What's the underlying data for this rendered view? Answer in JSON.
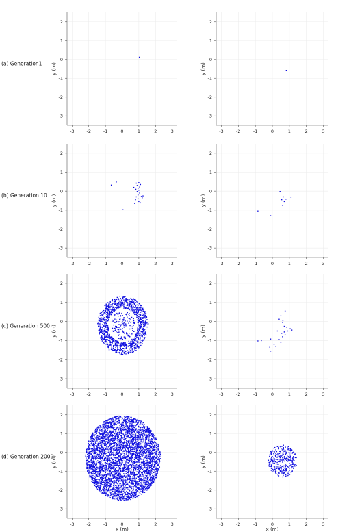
{
  "chart_data": {
    "type": "scatter",
    "point_color": "#1010e0",
    "xlim": [
      -3.3,
      3.3
    ],
    "ylim": [
      -3.5,
      2.5
    ],
    "xticks": [
      -3,
      -2,
      -1,
      0,
      1,
      2,
      3
    ],
    "yticks": [
      -3,
      -2,
      -1,
      0,
      1,
      2
    ],
    "xlabel": "x (m)",
    "ylabel": "y (m)",
    "grid": true,
    "rows": [
      {
        "label": "(a) Generation1",
        "panels": [
          {
            "points": [
              [
                1.03,
                0.12
              ]
            ]
          },
          {
            "points": [
              [
                0.82,
                -0.58
              ]
            ]
          }
        ]
      },
      {
        "label": "(b) Generation 10",
        "panels": [
          {
            "points": [
              [
                -0.65,
                0.32
              ],
              [
                -0.35,
                0.48
              ],
              [
                0.05,
                -0.98
              ],
              [
                0.85,
                0.42
              ],
              [
                1.0,
                0.45
              ],
              [
                0.9,
                0.3
              ],
              [
                1.05,
                0.22
              ],
              [
                0.95,
                0.15
              ],
              [
                0.82,
                0.1
              ],
              [
                1.0,
                0.05
              ],
              [
                0.9,
                -0.02
              ],
              [
                1.05,
                -0.1
              ],
              [
                0.95,
                -0.2
              ],
              [
                0.85,
                -0.3
              ],
              [
                1.15,
                -0.28
              ],
              [
                1.2,
                -0.35
              ],
              [
                0.8,
                -0.45
              ],
              [
                1.0,
                -0.55
              ],
              [
                1.1,
                -0.62
              ],
              [
                0.75,
                -0.65
              ],
              [
                1.25,
                -0.25
              ],
              [
                0.7,
                0.2
              ],
              [
                1.1,
                0.35
              ],
              [
                0.95,
                -0.4
              ]
            ]
          },
          {
            "points": [
              [
                0.45,
                -0.02
              ],
              [
                1.1,
                -0.32
              ],
              [
                0.55,
                -0.45
              ],
              [
                0.7,
                -0.55
              ],
              [
                0.6,
                -0.75
              ],
              [
                -0.85,
                -1.05
              ],
              [
                -0.1,
                -1.3
              ],
              [
                0.8,
                -0.42
              ],
              [
                0.65,
                -0.3
              ]
            ]
          }
        ]
      },
      {
        "label": "(c) Generation 500",
        "gen": {
          "type": "ring",
          "n": 1100,
          "cx": 0.05,
          "cy": -0.2,
          "rx": 1.2,
          "ry": 1.22,
          "spread": 0.26,
          "seed": 7,
          "inner": 140
        }
      },
      {
        "label": "(d) Generation 2000",
        "gen": {
          "type": "disk",
          "n": 4200,
          "cx": 0.05,
          "cy": -0.3,
          "r": 2.25,
          "seed": 11
        }
      }
    ]
  },
  "extra_points": {
    "row_c_right": [
      [
        0.5,
        0.3
      ],
      [
        0.4,
        0.12
      ],
      [
        0.75,
        0.55
      ],
      [
        0.6,
        -0.05
      ],
      [
        0.7,
        -0.25
      ],
      [
        0.85,
        -0.3
      ],
      [
        1.05,
        -0.38
      ],
      [
        1.15,
        -0.45
      ],
      [
        0.9,
        -0.5
      ],
      [
        0.7,
        -0.55
      ],
      [
        0.55,
        -0.62
      ],
      [
        0.75,
        -0.7
      ],
      [
        0.6,
        -0.8
      ],
      [
        0.4,
        -0.95
      ],
      [
        -0.1,
        -0.92
      ],
      [
        -0.85,
        -1.02
      ],
      [
        -0.65,
        -1.0
      ],
      [
        0.1,
        -1.2
      ],
      [
        -0.15,
        -1.35
      ],
      [
        -0.1,
        -1.55
      ],
      [
        0.2,
        -1.3
      ],
      [
        0.5,
        -1.1
      ],
      [
        0.3,
        -0.5
      ],
      [
        0.62,
        0.05
      ]
    ],
    "row_d_right": {
      "n": 320,
      "cx": 0.6,
      "cy": -0.45,
      "r": 0.85,
      "seed": 21
    }
  }
}
